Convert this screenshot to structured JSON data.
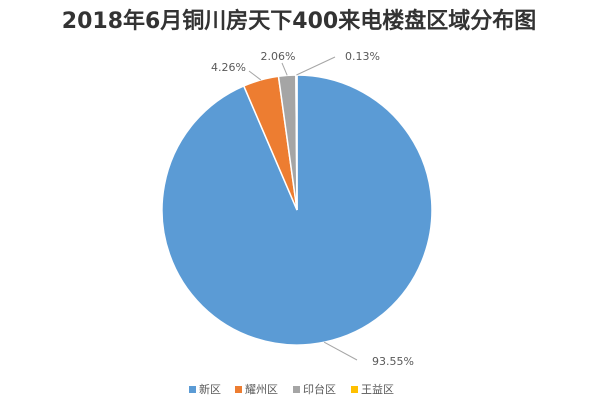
{
  "chart_data": {
    "type": "pie",
    "title": "2018年6月铜川房天下400来电楼盘区域分布图",
    "categories": [
      "新区",
      "耀州区",
      "印台区",
      "王益区"
    ],
    "values": [
      93.55,
      4.26,
      2.06,
      0.13
    ],
    "value_labels": [
      "93.55%",
      "4.26%",
      "2.06%",
      "0.13%"
    ],
    "colors": [
      "#5b9bd5",
      "#ed7d31",
      "#a5a5a5",
      "#ffc000"
    ]
  }
}
